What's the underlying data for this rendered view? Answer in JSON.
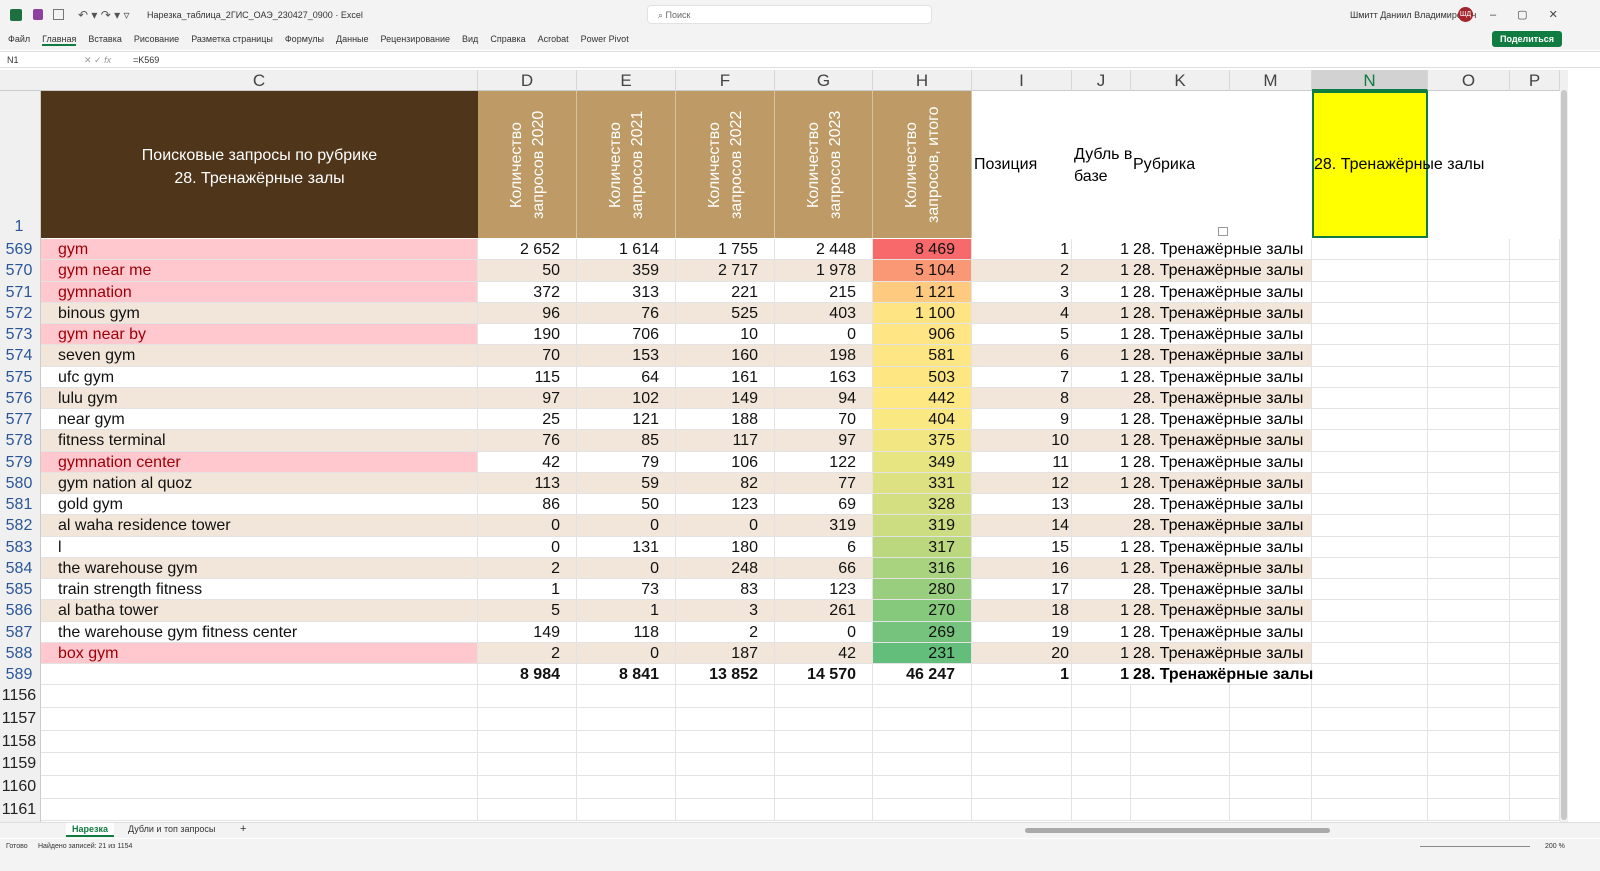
{
  "title_bar": {
    "file_name": "Нарезка_таблица_2ГИС_ОАЭ_230427_0900",
    "app": "Excel",
    "search": "Поиск",
    "user": "Шмитт Даниил Владимирович",
    "avatar": "ШД"
  },
  "ribbon_tabs": [
    "Файл",
    "Главная",
    "Вставка",
    "Рисование",
    "Разметка страницы",
    "Формулы",
    "Данные",
    "Рецензирование",
    "Вид",
    "Справка",
    "Acrobat",
    "Power Pivot"
  ],
  "share": "Поделиться",
  "formula_bar": {
    "name_box": "N1",
    "formula": "=K569"
  },
  "column_headers": [
    "C",
    "D",
    "E",
    "F",
    "G",
    "H",
    "I",
    "J",
    "K",
    "M",
    "N",
    "O",
    "P"
  ],
  "header_row": {
    "row_number": "1",
    "title": [
      "Поисковые запросы по рубрике",
      "28. Тренажёрные залы"
    ],
    "count_columns": [
      "Количество запросов 2020",
      "Количество запросов 2021",
      "Количество запросов 2022",
      "Количество запросов 2023",
      "Количество запросов, итого"
    ],
    "position": "Позиция",
    "duplicate": "Дубль в базе",
    "rubric": "Рубрика",
    "selected_cell": "28. Тренажёрные залы"
  },
  "rows": [
    {
      "row": "569",
      "query": "gym",
      "highlight": true,
      "counts": [
        "2 652",
        "1 614",
        "1 755",
        "2 448",
        "8 469"
      ],
      "position": "1",
      "duplicate": "1",
      "rubric": "28. Тренажёрные залы"
    },
    {
      "row": "570",
      "query": "gym near me",
      "highlight": true,
      "counts": [
        "50",
        "359",
        "2 717",
        "1 978",
        "5 104"
      ],
      "position": "2",
      "duplicate": "1",
      "rubric": "28. Тренажёрные залы"
    },
    {
      "row": "571",
      "query": "gymnation",
      "highlight": true,
      "counts": [
        "372",
        "313",
        "221",
        "215",
        "1 121"
      ],
      "position": "3",
      "duplicate": "1",
      "rubric": "28. Тренажёрные залы"
    },
    {
      "row": "572",
      "query": "binous gym",
      "highlight": false,
      "counts": [
        "96",
        "76",
        "525",
        "403",
        "1 100"
      ],
      "position": "4",
      "duplicate": "1",
      "rubric": "28. Тренажёрные залы"
    },
    {
      "row": "573",
      "query": "gym near by",
      "highlight": true,
      "counts": [
        "190",
        "706",
        "10",
        "0",
        "906"
      ],
      "position": "5",
      "duplicate": "1",
      "rubric": "28. Тренажёрные залы"
    },
    {
      "row": "574",
      "query": "seven gym",
      "highlight": false,
      "counts": [
        "70",
        "153",
        "160",
        "198",
        "581"
      ],
      "position": "6",
      "duplicate": "1",
      "rubric": "28. Тренажёрные залы"
    },
    {
      "row": "575",
      "query": "ufc gym",
      "highlight": false,
      "counts": [
        "115",
        "64",
        "161",
        "163",
        "503"
      ],
      "position": "7",
      "duplicate": "1",
      "rubric": "28. Тренажёрные залы"
    },
    {
      "row": "576",
      "query": "lulu gym",
      "highlight": false,
      "counts": [
        "97",
        "102",
        "149",
        "94",
        "442"
      ],
      "position": "8",
      "duplicate": null,
      "rubric": "28. Тренажёрные залы"
    },
    {
      "row": "577",
      "query": "near gym",
      "highlight": false,
      "counts": [
        "25",
        "121",
        "188",
        "70",
        "404"
      ],
      "position": "9",
      "duplicate": "1",
      "rubric": "28. Тренажёрные залы"
    },
    {
      "row": "578",
      "query": "fitness terminal",
      "highlight": false,
      "counts": [
        "76",
        "85",
        "117",
        "97",
        "375"
      ],
      "position": "10",
      "duplicate": "1",
      "rubric": "28. Тренажёрные залы"
    },
    {
      "row": "579",
      "query": "gymnation center",
      "highlight": true,
      "counts": [
        "42",
        "79",
        "106",
        "122",
        "349"
      ],
      "position": "11",
      "duplicate": "1",
      "rubric": "28. Тренажёрные залы"
    },
    {
      "row": "580",
      "query": "gym nation al quoz",
      "highlight": false,
      "counts": [
        "113",
        "59",
        "82",
        "77",
        "331"
      ],
      "position": "12",
      "duplicate": "1",
      "rubric": "28. Тренажёрные залы"
    },
    {
      "row": "581",
      "query": "gold gym",
      "highlight": false,
      "counts": [
        "86",
        "50",
        "123",
        "69",
        "328"
      ],
      "position": "13",
      "duplicate": null,
      "rubric": "28. Тренажёрные залы"
    },
    {
      "row": "582",
      "query": "al waha residence tower",
      "highlight": false,
      "counts": [
        "0",
        "0",
        "0",
        "319",
        "319"
      ],
      "position": "14",
      "duplicate": null,
      "rubric": "28. Тренажёрные залы"
    },
    {
      "row": "583",
      "query": "l",
      "highlight": false,
      "counts": [
        "0",
        "131",
        "180",
        "6",
        "317"
      ],
      "position": "15",
      "duplicate": "1",
      "rubric": "28. Тренажёрные залы"
    },
    {
      "row": "584",
      "query": "the warehouse gym",
      "highlight": false,
      "counts": [
        "2",
        "0",
        "248",
        "66",
        "316"
      ],
      "position": "16",
      "duplicate": "1",
      "rubric": "28. Тренажёрные залы"
    },
    {
      "row": "585",
      "query": "train strength fitness",
      "highlight": false,
      "counts": [
        "1",
        "73",
        "83",
        "123",
        "280"
      ],
      "position": "17",
      "duplicate": null,
      "rubric": "28. Тренажёрные залы"
    },
    {
      "row": "586",
      "query": "al batha tower",
      "highlight": false,
      "counts": [
        "5",
        "1",
        "3",
        "261",
        "270"
      ],
      "position": "18",
      "duplicate": "1",
      "rubric": "28. Тренажёрные залы"
    },
    {
      "row": "587",
      "query": "the warehouse gym fitness center",
      "highlight": false,
      "counts": [
        "149",
        "118",
        "2",
        "0",
        "269"
      ],
      "position": "19",
      "duplicate": "1",
      "rubric": "28. Тренажёрные залы"
    },
    {
      "row": "588",
      "query": "box gym",
      "highlight": true,
      "counts": [
        "2",
        "0",
        "187",
        "42",
        "231"
      ],
      "position": "20",
      "duplicate": "1",
      "rubric": "28. Тренажёрные залы"
    }
  ],
  "total_row": {
    "row": "589",
    "counts": [
      "8 984",
      "8 841",
      "13 852",
      "14 570",
      "46 247"
    ],
    "position": "1",
    "duplicate": "1",
    "rubric": "28. Тренажёрные залы"
  },
  "empty_rows": [
    "1156",
    "1157",
    "1158",
    "1159",
    "1160",
    "1161"
  ],
  "sheet_tabs": [
    "Нарезка",
    "Дубли и топ запросы"
  ],
  "status": {
    "ready": "Готово",
    "filter": "Найдено записей: 21 из 1154",
    "zoom": "200 %"
  }
}
